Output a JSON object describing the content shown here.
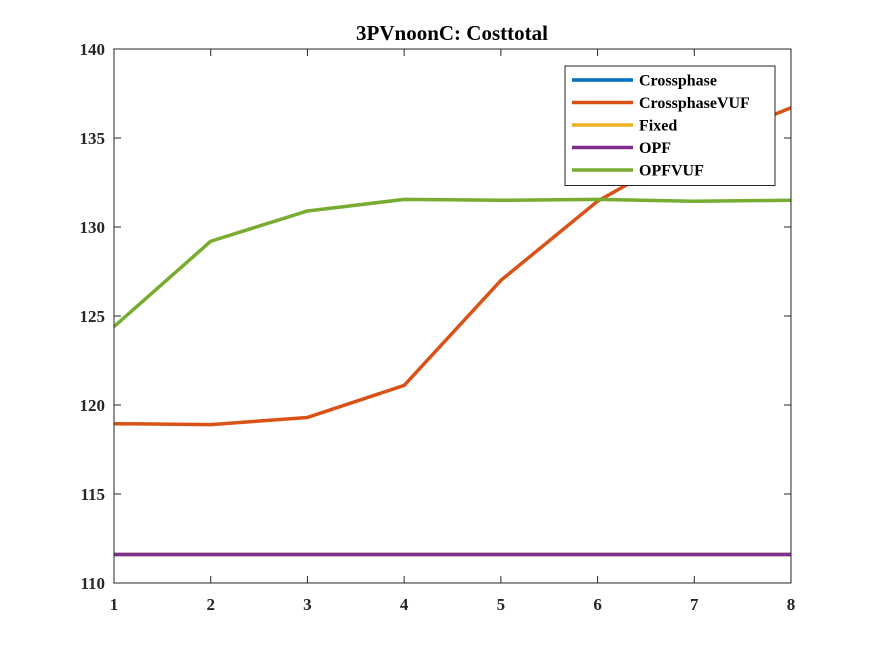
{
  "chart_data": {
    "type": "line",
    "title": "3PVnoonC: Costtotal",
    "xlabel": "",
    "ylabel": "",
    "x": [
      1,
      2,
      3,
      4,
      5,
      6,
      7,
      8
    ],
    "xlim": [
      1,
      8
    ],
    "ylim": [
      110,
      140
    ],
    "xticks": [
      "1",
      "2",
      "3",
      "4",
      "5",
      "6",
      "7",
      "8"
    ],
    "yticks": [
      "110",
      "115",
      "120",
      "125",
      "130",
      "135",
      "140"
    ],
    "grid": false,
    "legend_position": "top-right",
    "series": [
      {
        "name": "Crossphase",
        "color": "#0072BD",
        "values": [
          111.6,
          111.6,
          111.6,
          111.6,
          111.6,
          111.6,
          111.6,
          111.6
        ]
      },
      {
        "name": "CrossphaseVUF",
        "color": "#D95319",
        "values": [
          118.95,
          118.9,
          119.3,
          121.1,
          127.0,
          131.45,
          134.5,
          136.7
        ]
      },
      {
        "name": "Fixed",
        "color": "#EDB120",
        "values": [
          111.6,
          111.6,
          111.6,
          111.6,
          111.6,
          111.6,
          111.6,
          111.6
        ]
      },
      {
        "name": "OPF",
        "color": "#7E2F8E",
        "values": [
          111.6,
          111.6,
          111.6,
          111.6,
          111.6,
          111.6,
          111.6,
          111.6
        ]
      },
      {
        "name": "OPFVUF",
        "color": "#77AC30",
        "values": [
          124.4,
          129.2,
          130.9,
          131.55,
          131.5,
          131.55,
          131.45,
          131.5
        ]
      }
    ]
  }
}
